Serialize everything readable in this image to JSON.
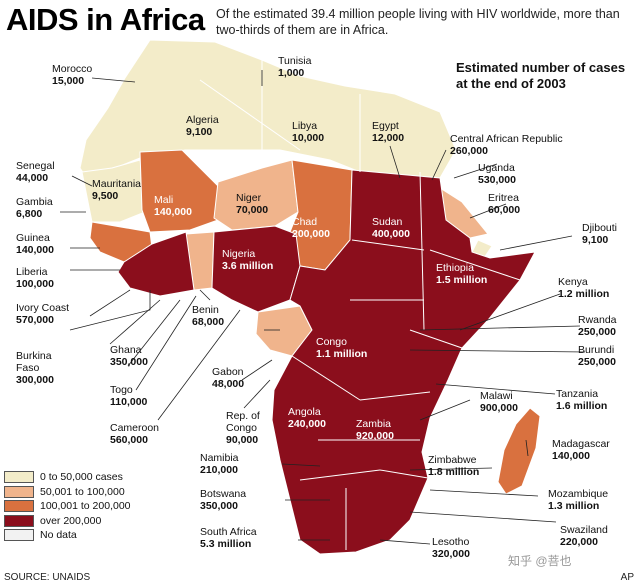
{
  "header": {
    "title": "AIDS in Africa",
    "subtitle": "Of the estimated 39.4 million people living with HIV worldwide, more than two-thirds of them are in Africa.",
    "heading": "Estimated number of cases at the end of 2003"
  },
  "colors": {
    "range_0_50000": "#f3ecc9",
    "range_50001_100000": "#f0b48c",
    "range_100001_200000": "#d9713f",
    "over_200000": "#8b0e1c",
    "no_data": "#f2f2f2",
    "border": "#ffffff",
    "leader": "#222222"
  },
  "legend": {
    "items": [
      {
        "label": "0 to 50,000 cases",
        "color": "#f3ecc9"
      },
      {
        "label": "50,001 to 100,000",
        "color": "#f0b48c"
      },
      {
        "label": "100,001 to 200,000",
        "color": "#d9713f"
      },
      {
        "label": "over 200,000",
        "color": "#8b0e1c"
      },
      {
        "label": "No data",
        "color": "#f2f2f2"
      }
    ]
  },
  "countries": {
    "morocco": {
      "name": "Morocco",
      "value": "15,000"
    },
    "tunisia": {
      "name": "Tunisia",
      "value": "1,000"
    },
    "algeria": {
      "name": "Algeria",
      "value": "9,100"
    },
    "libya": {
      "name": "Libya",
      "value": "10,000"
    },
    "egypt": {
      "name": "Egypt",
      "value": "12,000"
    },
    "car": {
      "name": "Central African Republic",
      "value": "260,000"
    },
    "senegal": {
      "name": "Senegal",
      "value": "44,000"
    },
    "mauritania": {
      "name": "Mauritania",
      "value": "9,500"
    },
    "gambia": {
      "name": "Gambia",
      "value": "6,800"
    },
    "mali": {
      "name": "Mali",
      "value": "140,000"
    },
    "niger": {
      "name": "Niger",
      "value": "70,000"
    },
    "chad": {
      "name": "Chad",
      "value": "200,000"
    },
    "sudan": {
      "name": "Sudan",
      "value": "400,000"
    },
    "uganda": {
      "name": "Uganda",
      "value": "530,000"
    },
    "eritrea": {
      "name": "Eritrea",
      "value": "60,000"
    },
    "djibouti": {
      "name": "Djibouti",
      "value": "9,100"
    },
    "guinea": {
      "name": "Guinea",
      "value": "140,000"
    },
    "nigeria": {
      "name": "Nigeria",
      "value": "3.6 million"
    },
    "ethiopia": {
      "name": "Ethiopia",
      "value": "1.5 million"
    },
    "liberia": {
      "name": "Liberia",
      "value": "100,000"
    },
    "kenya": {
      "name": "Kenya",
      "value": "1.2 million"
    },
    "ivory_coast": {
      "name": "Ivory Coast",
      "value": "570,000"
    },
    "benin": {
      "name": "Benin",
      "value": "68,000"
    },
    "rwanda": {
      "name": "Rwanda",
      "value": "250,000"
    },
    "burkina_faso": {
      "name": "Burkina\nFaso",
      "value": "300,000"
    },
    "ghana": {
      "name": "Ghana",
      "value": "350,000"
    },
    "congo": {
      "name": "Congo",
      "value": "1.1 million"
    },
    "burundi": {
      "name": "Burundi",
      "value": "250,000"
    },
    "gabon": {
      "name": "Gabon",
      "value": "48,000"
    },
    "togo": {
      "name": "Togo",
      "value": "110,000"
    },
    "rep_congo": {
      "name": "Rep. of\nCongo",
      "value": "90,000"
    },
    "malawi": {
      "name": "Malawi",
      "value": "900,000"
    },
    "tanzania": {
      "name": "Tanzania",
      "value": "1.6 million"
    },
    "cameroon": {
      "name": "Cameroon",
      "value": "560,000"
    },
    "angola": {
      "name": "Angola",
      "value": "240,000"
    },
    "zambia": {
      "name": "Zambia",
      "value": "920,000"
    },
    "madagascar": {
      "name": "Madagascar",
      "value": "140,000"
    },
    "namibia": {
      "name": "Namibia",
      "value": "210,000"
    },
    "zimbabwe": {
      "name": "Zimbabwe",
      "value": "1.8 million"
    },
    "botswana": {
      "name": "Botswana",
      "value": "350,000"
    },
    "mozambique": {
      "name": "Mozambique",
      "value": "1.3 million"
    },
    "swaziland": {
      "name": "Swaziland",
      "value": "220,000"
    },
    "south_africa": {
      "name": "South Africa",
      "value": "5.3 million"
    },
    "lesotho": {
      "name": "Lesotho",
      "value": "320,000"
    }
  },
  "footer": {
    "source": "SOURCE: UNAIDS",
    "credit": "AP",
    "watermark": "知乎 @菩也"
  }
}
